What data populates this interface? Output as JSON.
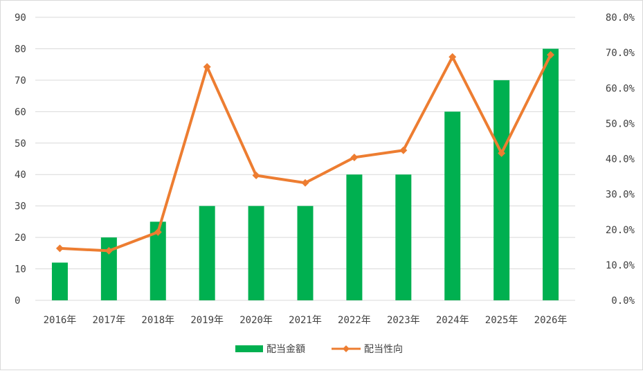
{
  "chart_data": {
    "type": "bar+line",
    "title": "",
    "categories": [
      "2016年",
      "2017年",
      "2018年",
      "2019年",
      "2020年",
      "2021年",
      "2022年",
      "2023年",
      "2024年",
      "2025年",
      "2026年"
    ],
    "series": [
      {
        "name": "配当金額",
        "type": "bar",
        "axis": "left",
        "color": "#00b050",
        "values": [
          12,
          20,
          25,
          30,
          30,
          30,
          40,
          40,
          60,
          70,
          80
        ]
      },
      {
        "name": "配当性向",
        "type": "line",
        "axis": "right",
        "color": "#ed7d31",
        "values": [
          14.7,
          14.0,
          19.3,
          66.0,
          35.3,
          33.2,
          40.4,
          42.4,
          68.8,
          41.6,
          69.4
        ]
      }
    ],
    "y_left": {
      "min": 0,
      "max": 90,
      "step": 10,
      "ticks": [
        "0",
        "10",
        "20",
        "30",
        "40",
        "50",
        "60",
        "70",
        "80",
        "90"
      ]
    },
    "y_right": {
      "min": 0,
      "max": 80,
      "step": 10,
      "ticks": [
        "0.0%",
        "10.0%",
        "20.0%",
        "30.0%",
        "40.0%",
        "50.0%",
        "60.0%",
        "70.0%",
        "80.0%"
      ]
    },
    "grid": true,
    "legend_position": "bottom"
  }
}
